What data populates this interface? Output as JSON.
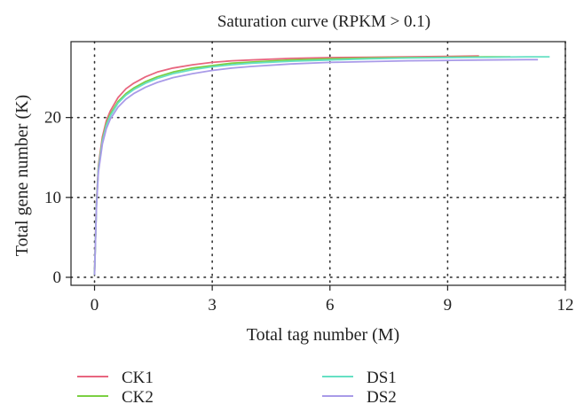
{
  "chart_data": {
    "type": "line",
    "title": "Saturation curve (RPKM > 0.1)",
    "xlabel": "Total tag number (M)",
    "ylabel": "Total gene number (K)",
    "xlim": [
      -0.6,
      12.0
    ],
    "ylim": [
      -1.0,
      29.5
    ],
    "xticks": [
      0,
      3,
      6,
      9,
      12
    ],
    "yticks": [
      0,
      10,
      20
    ],
    "x_tick_labels": [
      "0",
      "3",
      "6",
      "9",
      "12"
    ],
    "y_tick_labels": [
      "0",
      "10",
      "20"
    ],
    "grid": "dotted",
    "legend_position": "bottom",
    "series": [
      {
        "name": "CK1",
        "color": "#e8667f",
        "x": [
          0,
          0.05,
          0.1,
          0.2,
          0.3,
          0.4,
          0.6,
          0.8,
          1.0,
          1.3,
          1.6,
          2.0,
          2.5,
          3.0,
          3.5,
          4.0,
          5.0,
          6.0,
          7.0,
          8.0,
          9.0,
          9.8
        ],
        "y": [
          0.3,
          9.5,
          14.0,
          17.6,
          19.6,
          20.8,
          22.5,
          23.6,
          24.3,
          25.1,
          25.7,
          26.2,
          26.6,
          26.9,
          27.1,
          27.2,
          27.4,
          27.5,
          27.55,
          27.6,
          27.65,
          27.7
        ]
      },
      {
        "name": "CK2",
        "color": "#7bd042",
        "x": [
          0,
          0.05,
          0.1,
          0.2,
          0.3,
          0.4,
          0.6,
          0.8,
          1.0,
          1.3,
          1.6,
          2.0,
          2.5,
          3.0,
          3.5,
          4.0,
          5.0,
          6.0,
          7.0,
          8.0,
          9.0,
          10.0,
          10.6
        ],
        "y": [
          0.3,
          9.2,
          13.7,
          17.2,
          19.2,
          20.4,
          22.0,
          23.0,
          23.7,
          24.5,
          25.1,
          25.7,
          26.2,
          26.5,
          26.8,
          26.95,
          27.2,
          27.35,
          27.45,
          27.5,
          27.55,
          27.6,
          27.6
        ]
      },
      {
        "name": "DS1",
        "color": "#66e0c4",
        "x": [
          0,
          0.05,
          0.1,
          0.2,
          0.3,
          0.4,
          0.6,
          0.8,
          1.0,
          1.3,
          1.6,
          2.0,
          2.5,
          3.0,
          3.5,
          4.0,
          5.0,
          6.0,
          7.0,
          8.0,
          9.0,
          10.0,
          11.0,
          11.6
        ],
        "y": [
          0.3,
          9.0,
          13.5,
          17.0,
          19.0,
          20.2,
          21.8,
          22.8,
          23.5,
          24.3,
          24.9,
          25.5,
          26.0,
          26.35,
          26.6,
          26.8,
          27.05,
          27.2,
          27.35,
          27.45,
          27.5,
          27.55,
          27.6,
          27.6
        ]
      },
      {
        "name": "DS2",
        "color": "#a99be8",
        "x": [
          0,
          0.05,
          0.1,
          0.2,
          0.3,
          0.4,
          0.6,
          0.8,
          1.0,
          1.3,
          1.6,
          2.0,
          2.5,
          3.0,
          3.5,
          4.0,
          5.0,
          6.0,
          7.0,
          8.0,
          9.0,
          10.0,
          11.0,
          11.3
        ],
        "y": [
          0.3,
          8.8,
          13.2,
          16.7,
          18.6,
          19.8,
          21.3,
          22.3,
          23.0,
          23.8,
          24.4,
          25.0,
          25.5,
          25.9,
          26.2,
          26.4,
          26.7,
          26.9,
          27.0,
          27.1,
          27.15,
          27.2,
          27.25,
          27.25
        ]
      }
    ]
  }
}
